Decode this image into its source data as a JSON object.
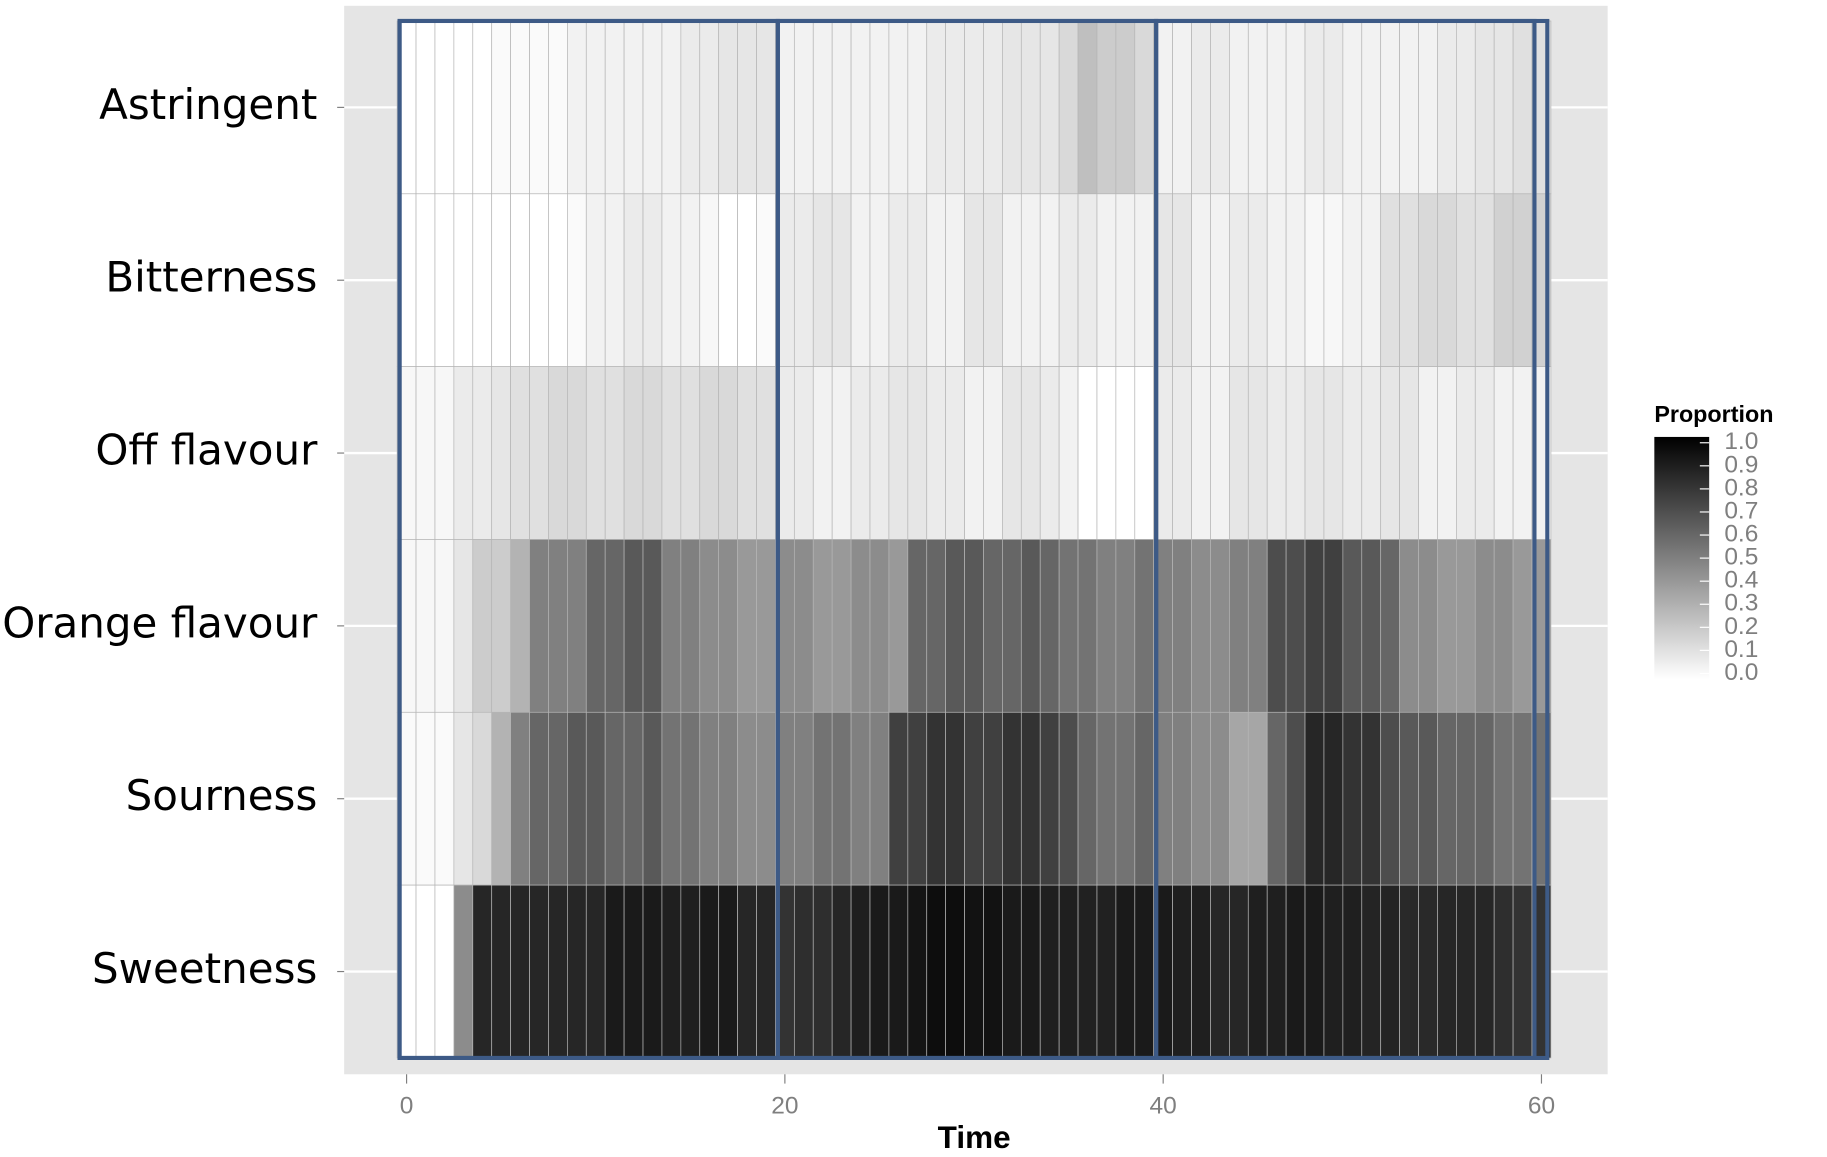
{
  "chart_data": {
    "type": "heatmap",
    "xlabel": "Time",
    "x": [
      0,
      1,
      2,
      3,
      4,
      5,
      6,
      7,
      8,
      9,
      10,
      11,
      12,
      13,
      14,
      15,
      16,
      17,
      18,
      19,
      20,
      21,
      22,
      23,
      24,
      25,
      26,
      27,
      28,
      29,
      30,
      31,
      32,
      33,
      34,
      35,
      36,
      37,
      38,
      39,
      40,
      41,
      42,
      43,
      44,
      45,
      46,
      47,
      48,
      49,
      50,
      51,
      52,
      53,
      54,
      55,
      56,
      57,
      58,
      59,
      60
    ],
    "xlim": [
      -3.3,
      63.5
    ],
    "xticks": [
      0,
      20,
      40,
      60
    ],
    "series": [
      {
        "name": "Astringent",
        "values": [
          0,
          0,
          0,
          0,
          0,
          0.02,
          0.02,
          0.02,
          0.02,
          0.05,
          0.05,
          0.05,
          0.05,
          0.05,
          0.05,
          0.08,
          0.08,
          0.1,
          0.1,
          0.1,
          0.05,
          0.05,
          0.05,
          0.05,
          0.05,
          0.05,
          0.05,
          0.05,
          0.08,
          0.08,
          0.08,
          0.08,
          0.1,
          0.1,
          0.1,
          0.15,
          0.25,
          0.2,
          0.2,
          0.15,
          0.05,
          0.05,
          0.08,
          0.08,
          0.05,
          0.05,
          0.05,
          0.05,
          0.08,
          0.08,
          0.05,
          0.05,
          0.05,
          0.05,
          0.05,
          0.08,
          0.08,
          0.1,
          0.1,
          0.12,
          0.12
        ]
      },
      {
        "name": "Bitterness",
        "values": [
          0,
          0,
          0,
          0,
          0,
          0,
          0,
          0,
          0,
          0.02,
          0.05,
          0.05,
          0.08,
          0.08,
          0.05,
          0.05,
          0.03,
          0,
          0,
          0.02,
          0.08,
          0.08,
          0.1,
          0.1,
          0.05,
          0.05,
          0.08,
          0.08,
          0.05,
          0.05,
          0.1,
          0.1,
          0.05,
          0.05,
          0.05,
          0.08,
          0.08,
          0.05,
          0.05,
          0.05,
          0.1,
          0.1,
          0.05,
          0.05,
          0.08,
          0.08,
          0.05,
          0.05,
          0.03,
          0.03,
          0.05,
          0.05,
          0.12,
          0.12,
          0.15,
          0.15,
          0.12,
          0.12,
          0.18,
          0.18,
          0.18
        ]
      },
      {
        "name": "Off flavour",
        "values": [
          0.03,
          0.03,
          0.03,
          0.08,
          0.08,
          0.1,
          0.12,
          0.12,
          0.15,
          0.15,
          0.12,
          0.12,
          0.15,
          0.15,
          0.12,
          0.12,
          0.15,
          0.15,
          0.12,
          0.12,
          0.08,
          0.08,
          0.05,
          0.05,
          0.08,
          0.08,
          0.1,
          0.1,
          0.08,
          0.08,
          0.05,
          0.05,
          0.1,
          0.1,
          0.08,
          0.05,
          0,
          0,
          0,
          0,
          0.08,
          0.08,
          0.05,
          0.05,
          0.1,
          0.1,
          0.08,
          0.08,
          0.1,
          0.1,
          0.08,
          0.08,
          0.1,
          0.1,
          0.05,
          0.05,
          0.08,
          0.08,
          0.05,
          0.05,
          0.05
        ]
      },
      {
        "name": "Orange flavour",
        "values": [
          0.03,
          0.03,
          0.03,
          0.1,
          0.2,
          0.2,
          0.3,
          0.5,
          0.5,
          0.5,
          0.6,
          0.6,
          0.65,
          0.65,
          0.5,
          0.5,
          0.45,
          0.45,
          0.4,
          0.4,
          0.45,
          0.45,
          0.4,
          0.4,
          0.45,
          0.45,
          0.4,
          0.6,
          0.6,
          0.65,
          0.65,
          0.6,
          0.6,
          0.65,
          0.6,
          0.55,
          0.55,
          0.5,
          0.5,
          0.55,
          0.5,
          0.5,
          0.45,
          0.45,
          0.5,
          0.5,
          0.7,
          0.7,
          0.75,
          0.75,
          0.65,
          0.65,
          0.6,
          0.45,
          0.45,
          0.4,
          0.4,
          0.45,
          0.45,
          0.4,
          0.4
        ]
      },
      {
        "name": "Sourness",
        "values": [
          0.02,
          0.02,
          0.02,
          0.1,
          0.15,
          0.3,
          0.5,
          0.6,
          0.6,
          0.65,
          0.65,
          0.6,
          0.6,
          0.65,
          0.55,
          0.55,
          0.5,
          0.5,
          0.45,
          0.45,
          0.5,
          0.5,
          0.55,
          0.55,
          0.5,
          0.5,
          0.75,
          0.75,
          0.8,
          0.8,
          0.75,
          0.75,
          0.8,
          0.8,
          0.75,
          0.7,
          0.6,
          0.55,
          0.55,
          0.6,
          0.5,
          0.5,
          0.45,
          0.45,
          0.35,
          0.35,
          0.6,
          0.7,
          0.85,
          0.85,
          0.8,
          0.8,
          0.7,
          0.65,
          0.65,
          0.6,
          0.6,
          0.6,
          0.55,
          0.55,
          0.55
        ]
      },
      {
        "name": "Sweetness",
        "values": [
          0,
          0,
          0,
          0.45,
          0.85,
          0.85,
          0.85,
          0.85,
          0.85,
          0.85,
          0.85,
          0.9,
          0.9,
          0.9,
          0.88,
          0.88,
          0.9,
          0.9,
          0.85,
          0.85,
          0.8,
          0.82,
          0.82,
          0.85,
          0.88,
          0.9,
          0.9,
          0.92,
          0.95,
          0.95,
          0.93,
          0.93,
          0.9,
          0.9,
          0.88,
          0.88,
          0.87,
          0.87,
          0.9,
          0.9,
          0.9,
          0.88,
          0.88,
          0.85,
          0.85,
          0.88,
          0.88,
          0.9,
          0.9,
          0.88,
          0.88,
          0.86,
          0.86,
          0.84,
          0.84,
          0.85,
          0.85,
          0.85,
          0.82,
          0.8,
          0.8
        ]
      }
    ],
    "colorbar": {
      "title": "Proportion",
      "low_color": "#ffffff",
      "high_color": "#000000",
      "lim": [
        0,
        1
      ],
      "ticks": [
        {
          "value": 0,
          "label": "0.0"
        },
        0.1,
        0.2,
        0.3,
        0.4,
        0.5,
        0.6,
        0.7,
        0.8,
        0.9,
        {
          "value": 1,
          "label": "1.0"
        }
      ]
    },
    "highlight_color": "#3d5a86"
  }
}
